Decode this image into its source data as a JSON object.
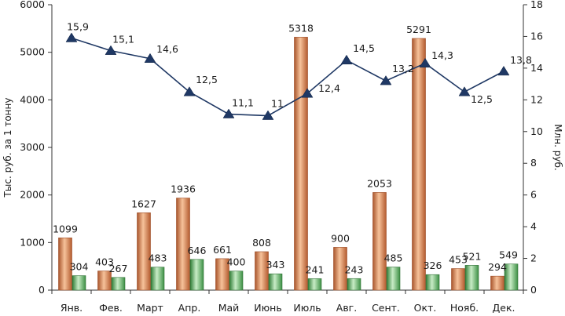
{
  "chart_data": {
    "type": "bar",
    "categories": [
      "Янв.",
      "Фев.",
      "Март",
      "Апр.",
      "Май",
      "Июнь",
      "Июль",
      "Авг.",
      "Сент.",
      "Окт.",
      "Нояб.",
      "Дек."
    ],
    "series": [
      {
        "name": "series-1",
        "kind": "bar",
        "axis": "left",
        "values": [
          1099,
          403,
          1627,
          1936,
          661,
          808,
          5318,
          900,
          2053,
          5291,
          453,
          294
        ],
        "labels": [
          "1099",
          "403",
          "1627",
          "1936",
          "661",
          "808",
          "5318",
          "900",
          "2053",
          "5291",
          "453",
          "294"
        ],
        "color": "#c8693a"
      },
      {
        "name": "series-2",
        "kind": "bar",
        "axis": "left",
        "values": [
          304,
          267,
          483,
          646,
          400,
          343,
          241,
          243,
          485,
          326,
          521,
          549
        ],
        "labels": [
          "304",
          "267",
          "483",
          "646",
          "400",
          "343",
          "241",
          "243",
          "485",
          "326",
          "521",
          "549"
        ],
        "color": "#3e9a48"
      },
      {
        "name": "series-3",
        "kind": "line",
        "axis": "right",
        "values": [
          15.9,
          15.1,
          14.6,
          12.5,
          11.1,
          11.0,
          12.4,
          14.5,
          13.2,
          14.3,
          12.5,
          13.8
        ],
        "labels": [
          "15,9",
          "15,1",
          "14,6",
          "12,5",
          "11,1",
          "11",
          "12,4",
          "14,5",
          "13,2",
          "14,3",
          "12,5",
          "13,8"
        ],
        "color": "#1f3864"
      }
    ],
    "ylabel": "Тыс. руб. за 1 тонну",
    "y2label": "Млн. руб.",
    "ylim": [
      0,
      6000
    ],
    "y2lim": [
      0,
      18
    ],
    "yticks": [
      "0",
      "1000",
      "2000",
      "3000",
      "4000",
      "5000",
      "6000"
    ],
    "y2ticks": [
      "0",
      "2",
      "4",
      "6",
      "8",
      "10",
      "12",
      "14",
      "16",
      "18"
    ],
    "grid": false,
    "legend": "none"
  }
}
